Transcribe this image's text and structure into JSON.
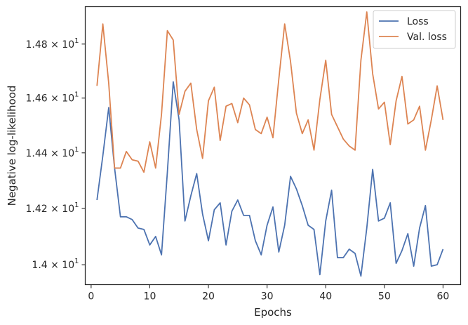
{
  "chart_data": {
    "type": "line",
    "xlabel": "Epochs",
    "ylabel": "Negative log-likelihood",
    "xlim": [
      -1,
      63
    ],
    "ylim": [
      13.93,
      14.94
    ],
    "yscale": "log",
    "grid": false,
    "legend_position": "top-right",
    "x_ticks": [
      {
        "value": 0,
        "label": "0"
      },
      {
        "value": 10,
        "label": "10"
      },
      {
        "value": 20,
        "label": "20"
      },
      {
        "value": 30,
        "label": "30"
      },
      {
        "value": 40,
        "label": "40"
      },
      {
        "value": 50,
        "label": "50"
      },
      {
        "value": 60,
        "label": "60"
      }
    ],
    "y_ticks": [
      {
        "value": 14.0,
        "label": "1.4 × 10",
        "exp": "1"
      },
      {
        "value": 14.2,
        "label": "1.42 × 10",
        "exp": "1"
      },
      {
        "value": 14.4,
        "label": "1.44 × 10",
        "exp": "1"
      },
      {
        "value": 14.6,
        "label": "1.46 × 10",
        "exp": "1"
      },
      {
        "value": 14.8,
        "label": "1.48 × 10",
        "exp": "1"
      }
    ],
    "x": [
      1,
      2,
      3,
      4,
      5,
      6,
      7,
      8,
      9,
      10,
      11,
      12,
      13,
      14,
      15,
      16,
      17,
      18,
      19,
      20,
      21,
      22,
      23,
      24,
      25,
      26,
      27,
      28,
      29,
      30,
      31,
      32,
      33,
      34,
      35,
      36,
      37,
      38,
      39,
      40,
      41,
      42,
      43,
      44,
      45,
      46,
      47,
      48,
      49,
      50,
      51,
      52,
      53,
      54,
      55,
      56,
      57,
      58,
      59,
      60
    ],
    "series": [
      {
        "name": "Loss",
        "color": "#4c72b0",
        "values": [
          14.23,
          14.39,
          14.565,
          14.345,
          14.17,
          14.17,
          14.16,
          14.13,
          14.125,
          14.07,
          14.1,
          14.035,
          14.33,
          14.66,
          14.52,
          14.155,
          14.245,
          14.325,
          14.18,
          14.085,
          14.195,
          14.22,
          14.07,
          14.19,
          14.23,
          14.175,
          14.175,
          14.085,
          14.035,
          14.14,
          14.205,
          14.045,
          14.14,
          14.315,
          14.27,
          14.21,
          14.14,
          14.125,
          13.965,
          14.155,
          14.265,
          14.025,
          14.025,
          14.055,
          14.04,
          13.96,
          14.13,
          14.34,
          14.155,
          14.165,
          14.22,
          14.005,
          14.05,
          14.11,
          13.995,
          14.13,
          14.21,
          13.995,
          14.0,
          14.055
        ]
      },
      {
        "name": "Val. loss",
        "color": "#dd8452",
        "values": [
          14.645,
          14.875,
          14.655,
          14.345,
          14.345,
          14.405,
          14.375,
          14.37,
          14.33,
          14.44,
          14.345,
          14.54,
          14.85,
          14.815,
          14.54,
          14.625,
          14.655,
          14.485,
          14.38,
          14.59,
          14.64,
          14.445,
          14.57,
          14.58,
          14.51,
          14.6,
          14.575,
          14.485,
          14.47,
          14.53,
          14.455,
          14.67,
          14.875,
          14.735,
          14.545,
          14.47,
          14.52,
          14.41,
          14.595,
          14.74,
          14.54,
          14.495,
          14.45,
          14.425,
          14.41,
          14.74,
          14.92,
          14.69,
          14.56,
          14.585,
          14.43,
          14.59,
          14.68,
          14.505,
          14.52,
          14.57,
          14.41,
          14.52,
          14.645,
          14.52
        ]
      }
    ]
  }
}
